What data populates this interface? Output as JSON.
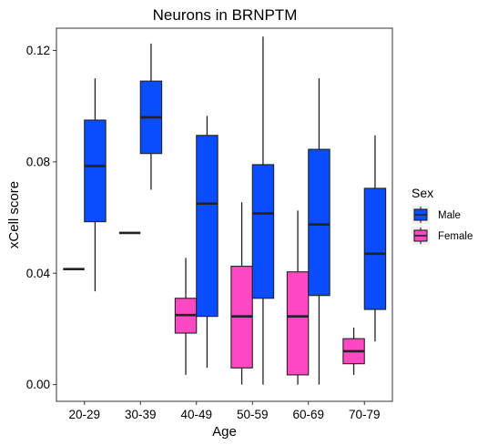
{
  "chart_data": {
    "type": "boxplot",
    "title": "Neurons in BRNPTM",
    "xlabel": "Age",
    "ylabel": "xCell score",
    "categories": [
      "20-29",
      "30-39",
      "40-49",
      "50-59",
      "60-69",
      "70-79"
    ],
    "ylim": [
      -0.006,
      0.128
    ],
    "yticks": [
      0.0,
      0.04,
      0.08,
      0.12
    ],
    "ytick_labels": [
      "0.00",
      "0.04",
      "0.08",
      "0.12"
    ],
    "grid": false,
    "legend": {
      "title": "Sex",
      "position": "right",
      "entries": [
        {
          "name": "Male",
          "color": "#0a4dff"
        },
        {
          "name": "Female",
          "color": "#ff48c4"
        }
      ]
    },
    "series": [
      {
        "name": "Female",
        "color": "#ff48c4",
        "boxes": [
          {
            "category": "20-29",
            "min": 0.0415,
            "q1": 0.0415,
            "median": 0.0415,
            "q3": 0.0415,
            "max": 0.0415
          },
          {
            "category": "30-39",
            "min": 0.0545,
            "q1": 0.0545,
            "median": 0.0545,
            "q3": 0.0545,
            "max": 0.0545
          },
          {
            "category": "40-49",
            "min": 0.0035,
            "q1": 0.0185,
            "median": 0.025,
            "q3": 0.031,
            "max": 0.0455
          },
          {
            "category": "50-59",
            "min": 0.0,
            "q1": 0.006,
            "median": 0.0245,
            "q3": 0.0425,
            "max": 0.0655
          },
          {
            "category": "60-69",
            "min": 0.0,
            "q1": 0.0035,
            "median": 0.0245,
            "q3": 0.0405,
            "max": 0.0625
          },
          {
            "category": "70-79",
            "min": 0.0035,
            "q1": 0.0075,
            "median": 0.012,
            "q3": 0.0165,
            "max": 0.0205
          }
        ]
      },
      {
        "name": "Male",
        "color": "#0a4dff",
        "boxes": [
          {
            "category": "20-29",
            "min": 0.0335,
            "q1": 0.0585,
            "median": 0.0785,
            "q3": 0.095,
            "max": 0.11
          },
          {
            "category": "30-39",
            "min": 0.07,
            "q1": 0.083,
            "median": 0.096,
            "q3": 0.109,
            "max": 0.1225
          },
          {
            "category": "40-49",
            "min": 0.006,
            "q1": 0.0245,
            "median": 0.065,
            "q3": 0.0895,
            "max": 0.0965
          },
          {
            "category": "50-59",
            "min": 0.0,
            "q1": 0.031,
            "median": 0.0615,
            "q3": 0.079,
            "max": 0.125
          },
          {
            "category": "60-69",
            "min": 0.0,
            "q1": 0.032,
            "median": 0.0575,
            "q3": 0.0845,
            "max": 0.11
          },
          {
            "category": "70-79",
            "min": 0.0155,
            "q1": 0.027,
            "median": 0.047,
            "q3": 0.0705,
            "max": 0.0895
          }
        ]
      }
    ]
  }
}
